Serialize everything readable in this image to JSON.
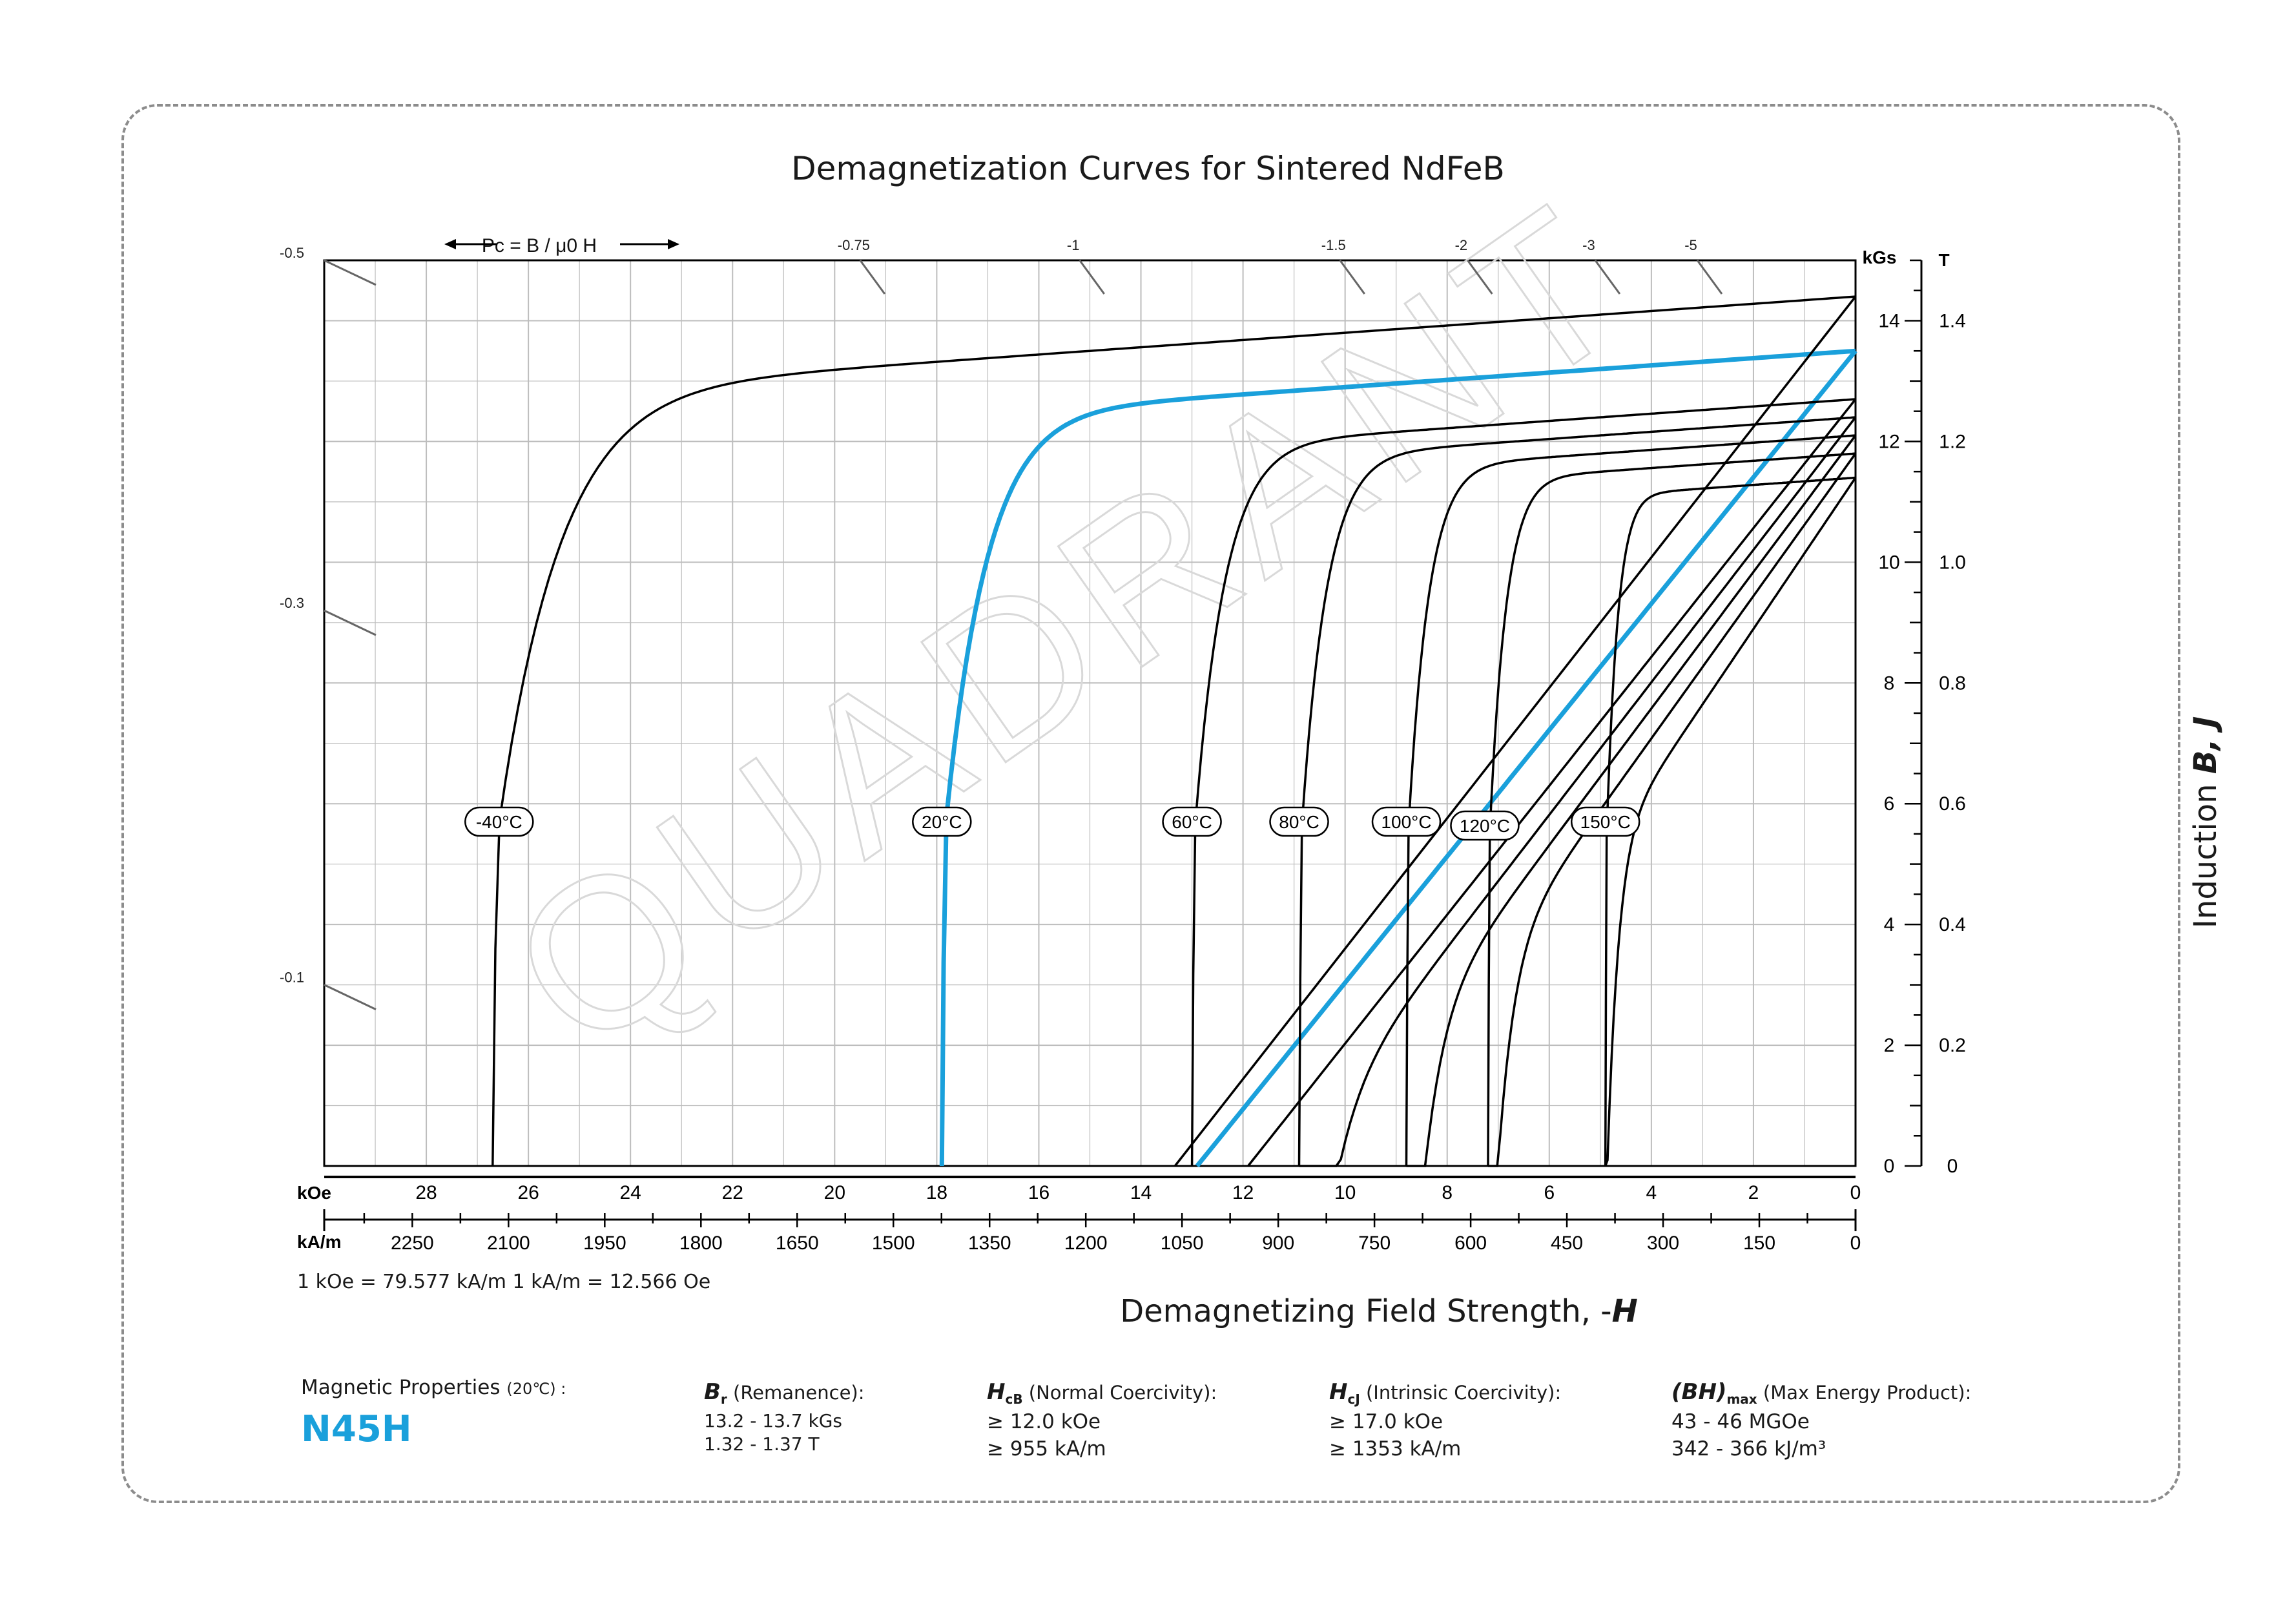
{
  "title": "Demagnetization Curves for Sintered NdFeB",
  "colors": {
    "accent": "#1aa0db",
    "curve": "#000000",
    "grid": "#bdbdbd",
    "pc_tick": "#666666"
  },
  "chart_data": {
    "type": "line",
    "title": "Demagnetization Curves for Sintered NdFeB",
    "xlabel": "Demagnetizing Field Strength, -H",
    "xlabel_prefix": "Demagnetizing Field Strength, -",
    "xlabel_var": "H",
    "ylabel": "Induction B, J",
    "ylabel_prefix": "Induction",
    "ylabel_vars": "B, J",
    "x_axis_kOe": {
      "label": "kOe",
      "range": [
        30,
        0
      ],
      "ticks": [
        "28",
        "26",
        "24",
        "22",
        "20",
        "18",
        "16",
        "14",
        "12",
        "10",
        "8",
        "6",
        "4",
        "2",
        "0"
      ]
    },
    "x_axis_kAm": {
      "label": "kA/m",
      "ticks": [
        "2250",
        "2100",
        "1950",
        "1800",
        "1650",
        "1500",
        "1350",
        "1200",
        "1050",
        "900",
        "750",
        "600",
        "450",
        "300",
        "150",
        "0"
      ]
    },
    "y_axis_kGs": {
      "label": "kGs",
      "range": [
        0,
        15
      ],
      "ticks": [
        "0",
        "2",
        "4",
        "6",
        "8",
        "10",
        "12",
        "14"
      ]
    },
    "y_axis_T": {
      "label": "T",
      "range": [
        0,
        1.5
      ],
      "ticks": [
        "0",
        "0.2",
        "0.4",
        "0.6",
        "0.8",
        "1.0",
        "1.2",
        "1.4"
      ]
    },
    "conversion": "1 kOe = 79.577 kA/m   1 kA/m = 12.566 Oe",
    "pc_label": "Pc = B / μ0 H",
    "pc_lines": [
      {
        "label": "-0.5",
        "edge": "left",
        "y": 15.0
      },
      {
        "label": "-0.3",
        "edge": "left",
        "y": 9.2
      },
      {
        "label": "-0.1",
        "edge": "left",
        "y": 3.0
      },
      {
        "label": "-0.75",
        "edge": "top",
        "x": 19.5
      },
      {
        "label": "-1",
        "edge": "top",
        "x": 15.2
      },
      {
        "label": "-1.5",
        "edge": "top",
        "x": 10.1
      },
      {
        "label": "-2",
        "edge": "top",
        "x": 7.6
      },
      {
        "label": "-3",
        "edge": "top",
        "x": 5.1
      },
      {
        "label": "-5",
        "edge": "top",
        "x": 3.1
      }
    ],
    "series": [
      {
        "name": "-40°C",
        "Br": 14.4,
        "Hcj": 26.7,
        "Hcb": null,
        "highlight": false
      },
      {
        "name": "20°C",
        "Br": 13.5,
        "Hcj": 17.9,
        "Hcb": 12.9,
        "highlight": true
      },
      {
        "name": "60°C",
        "Br": 12.7,
        "Hcj": 13.0,
        "Hcb": 11.9,
        "highlight": false
      },
      {
        "name": "80°C",
        "Br": 12.4,
        "Hcj": 10.9,
        "Hcb": 11.3,
        "highlight": false
      },
      {
        "name": "100°C",
        "Br": 12.1,
        "Hcj": 8.8,
        "Hcb": 10.7,
        "highlight": false
      },
      {
        "name": "120°C",
        "Br": 11.8,
        "Hcj": 7.2,
        "Hcb": 10.0,
        "highlight": false
      },
      {
        "name": "150°C",
        "Br": 11.4,
        "Hcj": 4.9,
        "Hcb": 9.1,
        "highlight": false
      }
    ],
    "b_line_neg40": {
      "Br": 14.4,
      "slope_per_kOe": 1.08
    },
    "watermark": "QUADRANT"
  },
  "properties": {
    "label": "Magnetic Properties",
    "label_temp": "(20℃) :",
    "grade": "N45H",
    "br": {
      "sym": "B",
      "sub": "r",
      "desc": "(Remanence):",
      "v1": "13.2 - 13.7 kGs",
      "v2": "1.32 - 1.37 T"
    },
    "hcb": {
      "sym": "H",
      "sub": "cB",
      "desc": "(Normal Coercivity):",
      "v1": "≥ 12.0 kOe",
      "v2": "≥ 955 kA/m"
    },
    "hcj": {
      "sym": "H",
      "sub": "cJ",
      "desc": "(Intrinsic Coercivity):",
      "v1": "≥ 17.0 kOe",
      "v2": "≥ 1353 kA/m"
    },
    "bh": {
      "sym": "(BH)",
      "sub": "max",
      "desc": "(Max Energy Product):",
      "v1": "43 - 46 MGOe",
      "v2": "342 - 366 kJ/m³"
    }
  }
}
